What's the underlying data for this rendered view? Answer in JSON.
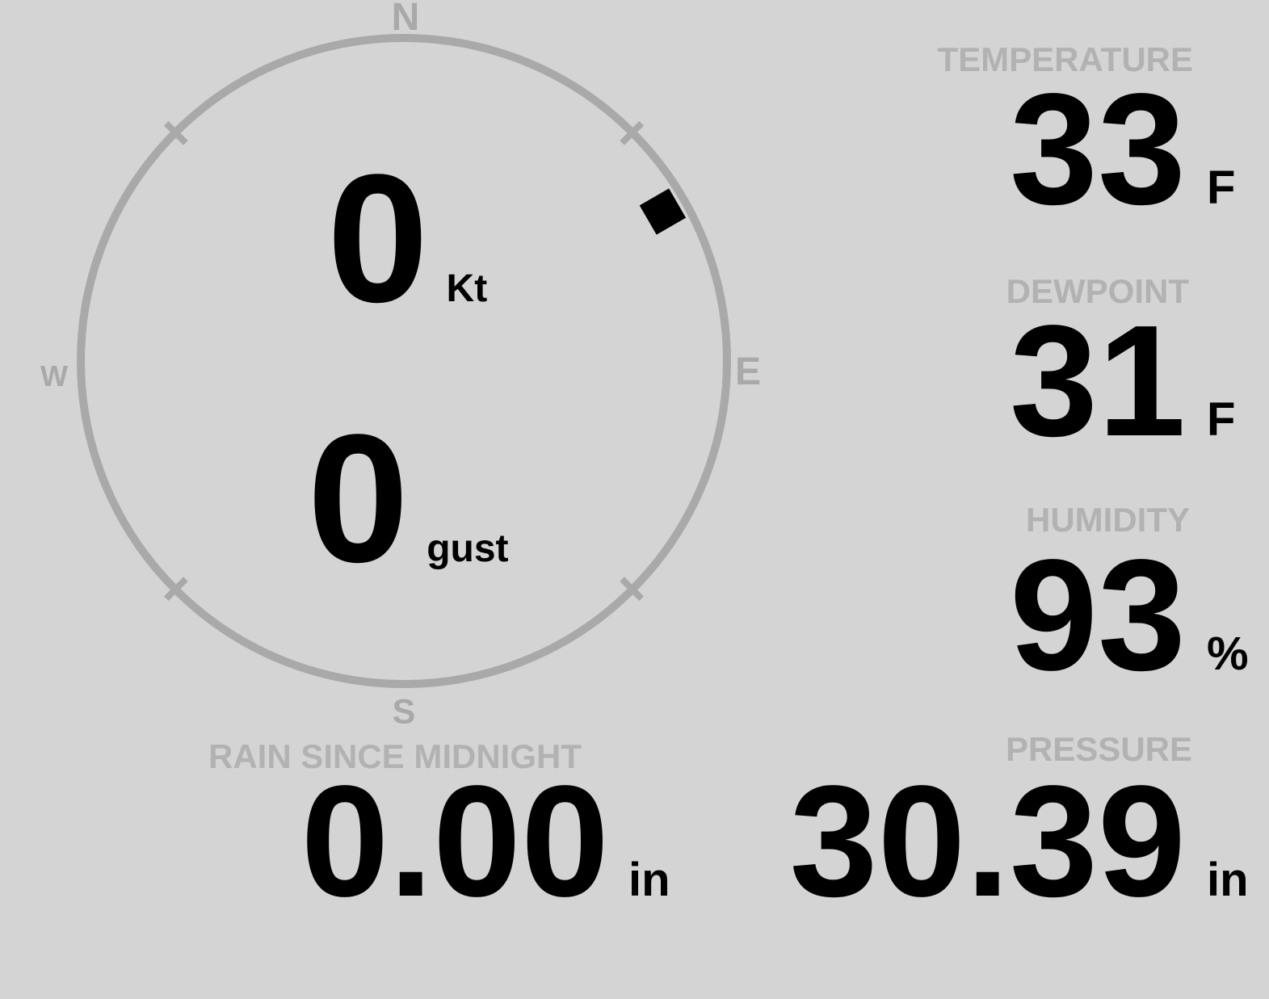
{
  "wind": {
    "speed": "0",
    "speed_unit": "Kt",
    "gust": "0",
    "gust_unit": "gust",
    "direction_deg": 60,
    "cardinals": {
      "n": "N",
      "e": "E",
      "s": "S",
      "w": "W"
    }
  },
  "metrics": {
    "temperature": {
      "label": "TEMPERATURE",
      "value": "33",
      "unit": "F"
    },
    "dewpoint": {
      "label": "DEWPOINT",
      "value": "31",
      "unit": "F"
    },
    "humidity": {
      "label": "HUMIDITY",
      "value": "93",
      "unit": "%"
    },
    "pressure": {
      "label": "PRESSURE",
      "value": "30.39",
      "unit": "in"
    },
    "rain": {
      "label": "RAIN SINCE MIDNIGHT",
      "value": "0.00",
      "unit": "in"
    }
  },
  "colors": {
    "background": "#d4d4d4",
    "dial": "#a9a9a9",
    "muted_label": "#b2b2b2",
    "value_text": "#000000",
    "direction_marker": "#000000"
  }
}
